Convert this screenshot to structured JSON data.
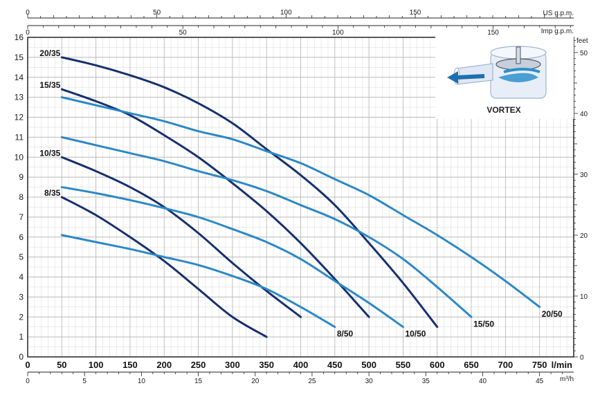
{
  "chart_data": {
    "type": "line",
    "title": "",
    "x_primary": {
      "unit": "l/min",
      "range": [
        0,
        800
      ],
      "ticks": [
        0,
        50,
        100,
        150,
        200,
        250,
        300,
        350,
        400,
        450,
        500,
        550,
        600,
        650,
        700,
        750
      ]
    },
    "x_m3h": {
      "unit": "m³/h",
      "ticks": [
        0,
        5,
        10,
        15,
        20,
        25,
        30,
        35,
        40,
        45
      ]
    },
    "x_us_gpm": {
      "unit": "US g.p.m.",
      "ticks": [
        0,
        50,
        100,
        150
      ]
    },
    "x_imp_gpm": {
      "unit": "Imp g.p.m.",
      "ticks": [
        0,
        50,
        100,
        150
      ]
    },
    "y_left": {
      "unit": "m",
      "range": [
        0,
        16
      ],
      "ticks": [
        0,
        1,
        2,
        3,
        4,
        5,
        6,
        7,
        8,
        9,
        10,
        11,
        12,
        13,
        14,
        15,
        16
      ]
    },
    "y_right": {
      "unit": "feet",
      "ticks": [
        0,
        10,
        20,
        30,
        40,
        50
      ]
    },
    "grid": true,
    "inset_label": "VORTEX",
    "series": [
      {
        "name": "8/35",
        "color": "#16306e",
        "label_side": "left",
        "x": [
          50,
          100,
          150,
          200,
          250,
          300,
          350
        ],
        "y": [
          8.0,
          7.1,
          6.0,
          4.8,
          3.4,
          2.0,
          1.0
        ]
      },
      {
        "name": "10/35",
        "color": "#16306e",
        "label_side": "left",
        "x": [
          50,
          100,
          150,
          200,
          250,
          300,
          350,
          400
        ],
        "y": [
          10.0,
          9.3,
          8.5,
          7.5,
          6.2,
          4.7,
          3.3,
          2.0
        ]
      },
      {
        "name": "15/35",
        "color": "#16306e",
        "label_side": "left",
        "x": [
          50,
          100,
          150,
          200,
          250,
          300,
          350,
          400,
          450,
          500
        ],
        "y": [
          13.4,
          12.8,
          12.1,
          11.1,
          10.0,
          8.7,
          7.3,
          5.7,
          3.9,
          2.0
        ]
      },
      {
        "name": "20/35",
        "color": "#16306e",
        "label_side": "left",
        "x": [
          50,
          100,
          150,
          200,
          250,
          300,
          350,
          400,
          450,
          500,
          550,
          600
        ],
        "y": [
          15.0,
          14.6,
          14.1,
          13.5,
          12.7,
          11.7,
          10.4,
          9.1,
          7.6,
          5.7,
          3.7,
          1.5
        ]
      },
      {
        "name": "8/50",
        "color": "#2b88c6",
        "label_side": "right",
        "x": [
          50,
          100,
          150,
          200,
          250,
          300,
          350,
          400,
          450
        ],
        "y": [
          6.1,
          5.75,
          5.4,
          5.0,
          4.6,
          4.05,
          3.4,
          2.5,
          1.5
        ]
      },
      {
        "name": "10/50",
        "color": "#2b88c6",
        "label_side": "right",
        "x": [
          50,
          100,
          150,
          200,
          250,
          300,
          350,
          400,
          450,
          500,
          550
        ],
        "y": [
          8.5,
          8.2,
          7.85,
          7.45,
          7.0,
          6.4,
          5.75,
          4.9,
          3.8,
          2.7,
          1.5
        ]
      },
      {
        "name": "15/50",
        "color": "#2b88c6",
        "label_side": "right",
        "x": [
          50,
          100,
          150,
          200,
          250,
          300,
          350,
          400,
          450,
          500,
          550,
          600,
          650
        ],
        "y": [
          11.0,
          10.6,
          10.2,
          9.8,
          9.3,
          8.85,
          8.3,
          7.6,
          6.9,
          6.0,
          4.9,
          3.5,
          2.0
        ]
      },
      {
        "name": "20/50",
        "color": "#2b88c6",
        "label_side": "right",
        "x": [
          50,
          100,
          150,
          200,
          250,
          300,
          350,
          400,
          450,
          500,
          550,
          600,
          650,
          700,
          750
        ],
        "y": [
          13.0,
          12.6,
          12.2,
          11.8,
          11.3,
          10.9,
          10.3,
          9.7,
          8.9,
          8.1,
          7.1,
          6.1,
          5.0,
          3.8,
          2.5
        ]
      }
    ]
  }
}
